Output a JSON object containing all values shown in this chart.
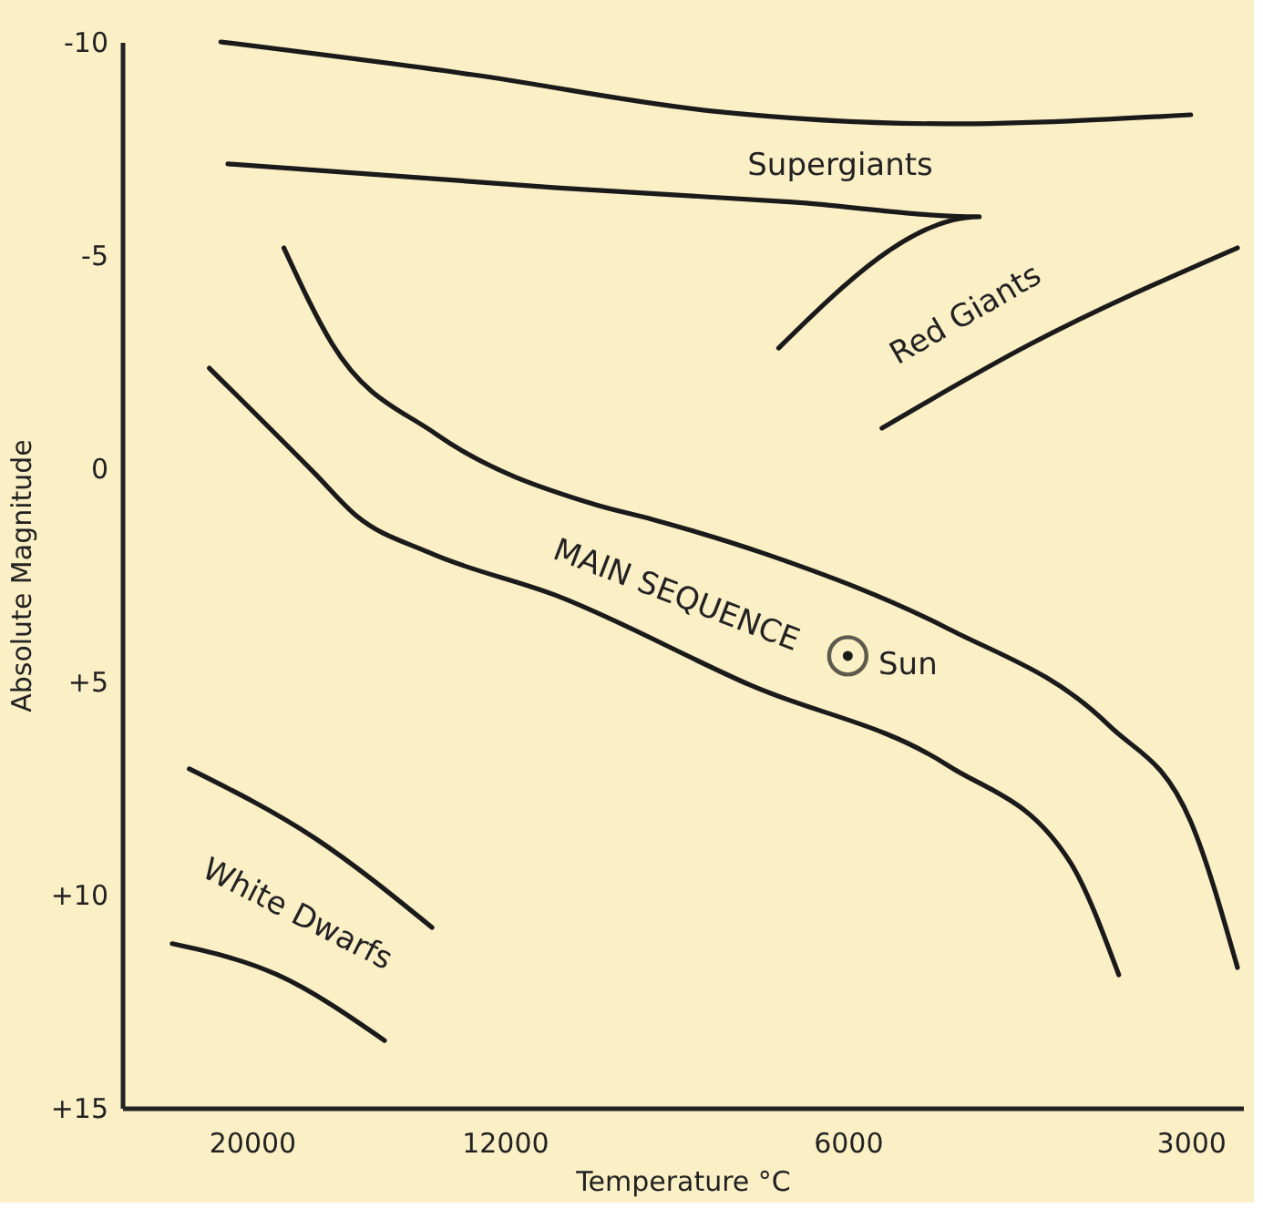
{
  "chart_data": {
    "type": "line",
    "xlabel": "Temperature °C",
    "ylabel": "Absolute Magnitude",
    "log": "x",
    "xlim": [
      26000,
      2700
    ],
    "ylim": [
      15,
      -10
    ],
    "xticks": [
      20000,
      12000,
      6000,
      3000
    ],
    "yticks": [
      {
        "value": -10,
        "label": "-10"
      },
      {
        "value": -5,
        "label": "-5"
      },
      {
        "value": 0,
        "label": "0"
      },
      {
        "value": 5,
        "label": "+5"
      },
      {
        "value": 10,
        "label": "+10"
      },
      {
        "value": 15,
        "label": "+15"
      }
    ],
    "grid": false,
    "legend": false,
    "marker": "none",
    "line_style": "solid",
    "series": [
      {
        "color": "#1a1a1a",
        "x": [
          21300,
          12800,
          7900,
          4900,
          3000
        ],
        "values": [
          -10,
          -9.23,
          -8.38,
          -8.08,
          -8.29
        ]
      },
      {
        "color": "#1a1a1a",
        "x": [
          21000,
          10800,
          6700,
          4600,
          6900
        ],
        "values": [
          -7.14,
          -6.58,
          -6.24,
          -5.9,
          -2.82
        ]
      },
      {
        "color": "#1a1a1a",
        "x": [
          5600,
          4150,
          2730
        ],
        "values": [
          -0.94,
          -2.91,
          -5.17
        ]
      },
      {
        "color": "#1a1a1a",
        "x": [
          18750,
          17000,
          13800,
          10000,
          8900,
          7100,
          4900,
          3540,
          3000,
          2730
        ],
        "values": [
          -5.17,
          -2.91,
          -0.81,
          0.85,
          1.2,
          2.0,
          3.76,
          6.03,
          8.29,
          11.71
        ]
      },
      {
        "color": "#1a1a1a",
        "x": [
          21800,
          17600,
          16200,
          14000,
          10800,
          7300,
          4900,
          3830,
          3470
        ],
        "values": [
          -2.35,
          0.13,
          1.11,
          1.97,
          2.99,
          5.09,
          6.97,
          9.23,
          11.88
        ]
      },
      {
        "color": "#1a1a1a",
        "x": [
          22700,
          17600,
          13900
        ],
        "values": [
          7.05,
          8.68,
          10.77
        ]
      },
      {
        "color": "#1a1a1a",
        "x": [
          23500,
          19000,
          15300
        ],
        "values": [
          11.15,
          11.88,
          13.42
        ]
      },
      {
        "type": "scatter",
        "marker": "circle",
        "color": "#1a1a1a",
        "x": [
          6000
        ],
        "values": [
          4.4
        ]
      }
    ],
    "annotations": [
      "Supergiants",
      "Red Giants",
      "MAIN SEQUENCE",
      "Sun",
      "White Dwarfs"
    ]
  }
}
